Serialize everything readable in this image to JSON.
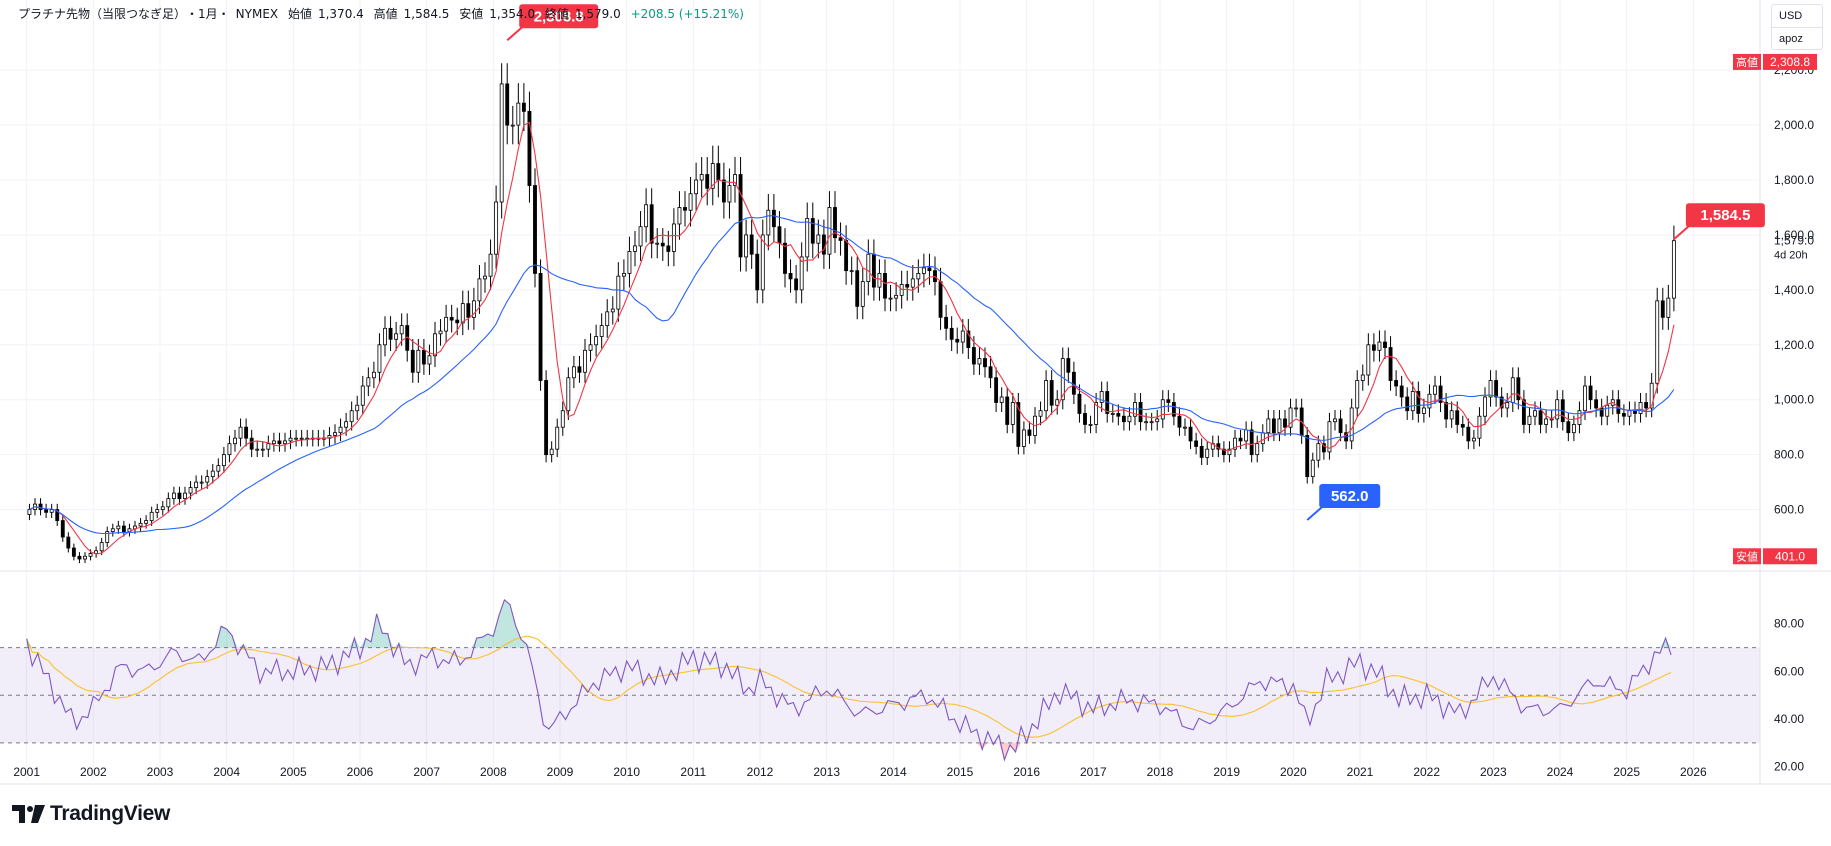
{
  "header": {
    "symbol": "プラチナ先物（当限つなぎ足）",
    "interval": "・1月・",
    "exchange": "NYMEX",
    "open_label": "始値",
    "open": "1,370.4",
    "high_label": "高値",
    "high": "1,584.5",
    "low_label": "安値",
    "low": "1,354.0",
    "close_label": "終値",
    "close": "1,579.0",
    "change": "+208.5 (+15.21%)"
  },
  "currency": "USD",
  "user": "apoz",
  "brand": "TradingView",
  "colors": {
    "ma_fast": "#f23645",
    "ma_slow": "#2962ff",
    "rsi": "#7e57c2",
    "rsi_ma": "#fbc02d",
    "high_badge": "#f23645",
    "low_badge": "#2962ff",
    "candle_body": "#000000"
  },
  "chart_data": [
    {
      "type": "candlestick",
      "price_axis": [
        600,
        800,
        1000,
        1200,
        1400,
        1600,
        1800,
        2000,
        2200
      ],
      "ylim": [
        380,
        2390
      ],
      "years": [
        "2001",
        "2002",
        "2003",
        "2004",
        "2005",
        "2006",
        "2007",
        "2008",
        "2009",
        "2010",
        "2011",
        "2012",
        "2013",
        "2014",
        "2015",
        "2016",
        "2017",
        "2018",
        "2019",
        "2020",
        "2021",
        "2022",
        "2023",
        "2024",
        "2025",
        "2026"
      ],
      "approx_monthly_close": [
        [
          2001,
          [
            600,
            620,
            600,
            590,
            600,
            560,
            500,
            460,
            430,
            420,
            430,
            440
          ]
        ],
        [
          2002,
          [
            450,
            480,
            520,
            530,
            540,
            520,
            530,
            540,
            550,
            560,
            590,
            600
          ]
        ],
        [
          2003,
          [
            610,
            640,
            660,
            640,
            660,
            680,
            700,
            700,
            720,
            740,
            760,
            800
          ]
        ],
        [
          2004,
          [
            840,
            860,
            900,
            860,
            820,
            820,
            820,
            840,
            850,
            840,
            850,
            860
          ]
        ],
        [
          2005,
          [
            860,
            860,
            860,
            860,
            860,
            860,
            870,
            880,
            900,
            920,
            960,
            980
          ]
        ],
        [
          2006,
          [
            1050,
            1080,
            1100,
            1200,
            1260,
            1220,
            1240,
            1270,
            1180,
            1100,
            1180,
            1130
          ]
        ],
        [
          2007,
          [
            1160,
            1240,
            1250,
            1300,
            1290,
            1280,
            1350,
            1300,
            1360,
            1440,
            1450,
            1530
          ]
        ],
        [
          2008,
          [
            1720,
            2150,
            2000,
            2000,
            2080,
            2050,
            1780,
            1460,
            1070,
            800,
            820,
            900
          ]
        ],
        [
          2009,
          [
            960,
            1080,
            1120,
            1100,
            1180,
            1200,
            1230,
            1270,
            1320,
            1330,
            1450,
            1460
          ]
        ],
        [
          2010,
          [
            1540,
            1560,
            1630,
            1710,
            1570,
            1570,
            1560,
            1540,
            1640,
            1700,
            1690,
            1750
          ]
        ],
        [
          2011,
          [
            1800,
            1820,
            1770,
            1860,
            1800,
            1720,
            1780,
            1820,
            1520,
            1600,
            1530,
            1400
          ]
        ],
        [
          2012,
          [
            1600,
            1690,
            1630,
            1570,
            1460,
            1440,
            1400,
            1520,
            1660,
            1570,
            1600,
            1530
          ]
        ],
        [
          2013,
          [
            1700,
            1590,
            1580,
            1470,
            1470,
            1340,
            1430,
            1530,
            1410,
            1460,
            1370,
            1370
          ]
        ],
        [
          2014,
          [
            1380,
            1420,
            1410,
            1440,
            1460,
            1480,
            1470,
            1430,
            1300,
            1260,
            1220,
            1210
          ]
        ],
        [
          2015,
          [
            1250,
            1190,
            1130,
            1150,
            1120,
            1080,
            990,
            1010,
            910,
            990,
            830,
            890
          ]
        ],
        [
          2016,
          [
            870,
            940,
            960,
            1070,
            980,
            1000,
            1150,
            1100,
            1020,
            950,
            910,
            910
          ]
        ],
        [
          2017,
          [
            990,
            1030,
            950,
            950,
            940,
            920,
            940,
            990,
            920,
            920,
            920,
            930
          ]
        ],
        [
          2018,
          [
            1000,
            990,
            940,
            900,
            900,
            850,
            830,
            790,
            820,
            840,
            820,
            800
          ]
        ],
        [
          2019,
          [
            820,
            860,
            850,
            890,
            800,
            840,
            880,
            930,
            880,
            930,
            900,
            970
          ]
        ],
        [
          2020,
          [
            970,
            870,
            720,
            780,
            840,
            810,
            920,
            930,
            880,
            850,
            970,
            1070
          ]
        ],
        [
          2021,
          [
            1090,
            1200,
            1180,
            1210,
            1190,
            1070,
            1050,
            1010,
            960,
            1030,
            950,
            970
          ]
        ],
        [
          2022,
          [
            1020,
            1050,
            990,
            930,
            960,
            910,
            900,
            850,
            860,
            940,
            1010,
            1070
          ]
        ],
        [
          2023,
          [
            1010,
            970,
            990,
            1080,
            1000,
            910,
            940,
            960,
            910,
            930,
            930,
            1000
          ]
        ],
        [
          2024,
          [
            920,
            880,
            910,
            960,
            1050,
            1000,
            970,
            940,
            980,
            1000,
            950,
            940
          ]
        ],
        [
          2025,
          [
            960,
            950,
            990,
            970,
            1060,
            1360,
            1300,
            1370,
            1579
          ]
        ]
      ],
      "series": [
        {
          "name": "",
          "role": "moving-average-fast",
          "color": "#f23645"
        },
        {
          "name": "",
          "role": "moving-average-slow",
          "color": "#2962ff"
        }
      ],
      "annotations": [
        {
          "text": "2,308.8",
          "kind": "high",
          "x": "2008-03",
          "y": 2308.8
        },
        {
          "text": "562.0",
          "kind": "low",
          "x": "2020-03",
          "y": 562.0
        },
        {
          "text": "1,584.5",
          "kind": "current-high",
          "x": "2025-09",
          "y": 1584.5
        }
      ],
      "axis_badges": [
        {
          "label": "高値",
          "value": "2,308.8",
          "kind": "high"
        },
        {
          "label": "安値",
          "value": "401.0",
          "kind": "low"
        }
      ],
      "last_price": "1,579.0",
      "countdown": "4d 20h",
      "grid": true
    },
    {
      "type": "line",
      "name": "",
      "indicator_axis": [
        20,
        40,
        60,
        80
      ],
      "ylim": [
        14,
        95
      ],
      "bands": [
        30,
        50,
        70
      ],
      "series": [
        {
          "name": "",
          "role": "rsi",
          "color": "#7e57c2"
        },
        {
          "name": "",
          "role": "rsi-moving-average",
          "color": "#fbc02d"
        }
      ],
      "approx_points": [
        [
          2001.0,
          72
        ],
        [
          2001.2,
          62
        ],
        [
          2001.5,
          48
        ],
        [
          2001.7,
          38
        ],
        [
          2002.0,
          45
        ],
        [
          2002.4,
          62
        ],
        [
          2002.8,
          60
        ],
        [
          2003.2,
          68
        ],
        [
          2003.6,
          64
        ],
        [
          2004.0,
          78
        ],
        [
          2004.2,
          70
        ],
        [
          2004.5,
          60
        ],
        [
          2005.0,
          60
        ],
        [
          2005.5,
          62
        ],
        [
          2006.0,
          70
        ],
        [
          2006.3,
          80
        ],
        [
          2006.7,
          62
        ],
        [
          2007.0,
          66
        ],
        [
          2007.5,
          64
        ],
        [
          2008.0,
          78
        ],
        [
          2008.2,
          90
        ],
        [
          2008.5,
          70
        ],
        [
          2008.8,
          35
        ],
        [
          2009.0,
          40
        ],
        [
          2009.5,
          55
        ],
        [
          2010.0,
          62
        ],
        [
          2010.5,
          56
        ],
        [
          2011.0,
          66
        ],
        [
          2011.5,
          62
        ],
        [
          2011.8,
          52
        ],
        [
          2012.0,
          56
        ],
        [
          2012.5,
          44
        ],
        [
          2013.0,
          53
        ],
        [
          2013.5,
          42
        ],
        [
          2014.0,
          46
        ],
        [
          2014.5,
          50
        ],
        [
          2015.0,
          38
        ],
        [
          2015.5,
          30
        ],
        [
          2015.8,
          27
        ],
        [
          2016.0,
          34
        ],
        [
          2016.5,
          52
        ],
        [
          2017.0,
          44
        ],
        [
          2017.5,
          48
        ],
        [
          2018.0,
          46
        ],
        [
          2018.5,
          36
        ],
        [
          2019.0,
          44
        ],
        [
          2019.5,
          56
        ],
        [
          2020.0,
          54
        ],
        [
          2020.2,
          38
        ],
        [
          2020.5,
          56
        ],
        [
          2021.0,
          64
        ],
        [
          2021.3,
          58
        ],
        [
          2021.6,
          48
        ],
        [
          2022.0,
          50
        ],
        [
          2022.5,
          42
        ],
        [
          2023.0,
          58
        ],
        [
          2023.5,
          44
        ],
        [
          2024.0,
          44
        ],
        [
          2024.5,
          56
        ],
        [
          2025.0,
          52
        ],
        [
          2025.4,
          66
        ],
        [
          2025.7,
          72
        ]
      ]
    }
  ]
}
